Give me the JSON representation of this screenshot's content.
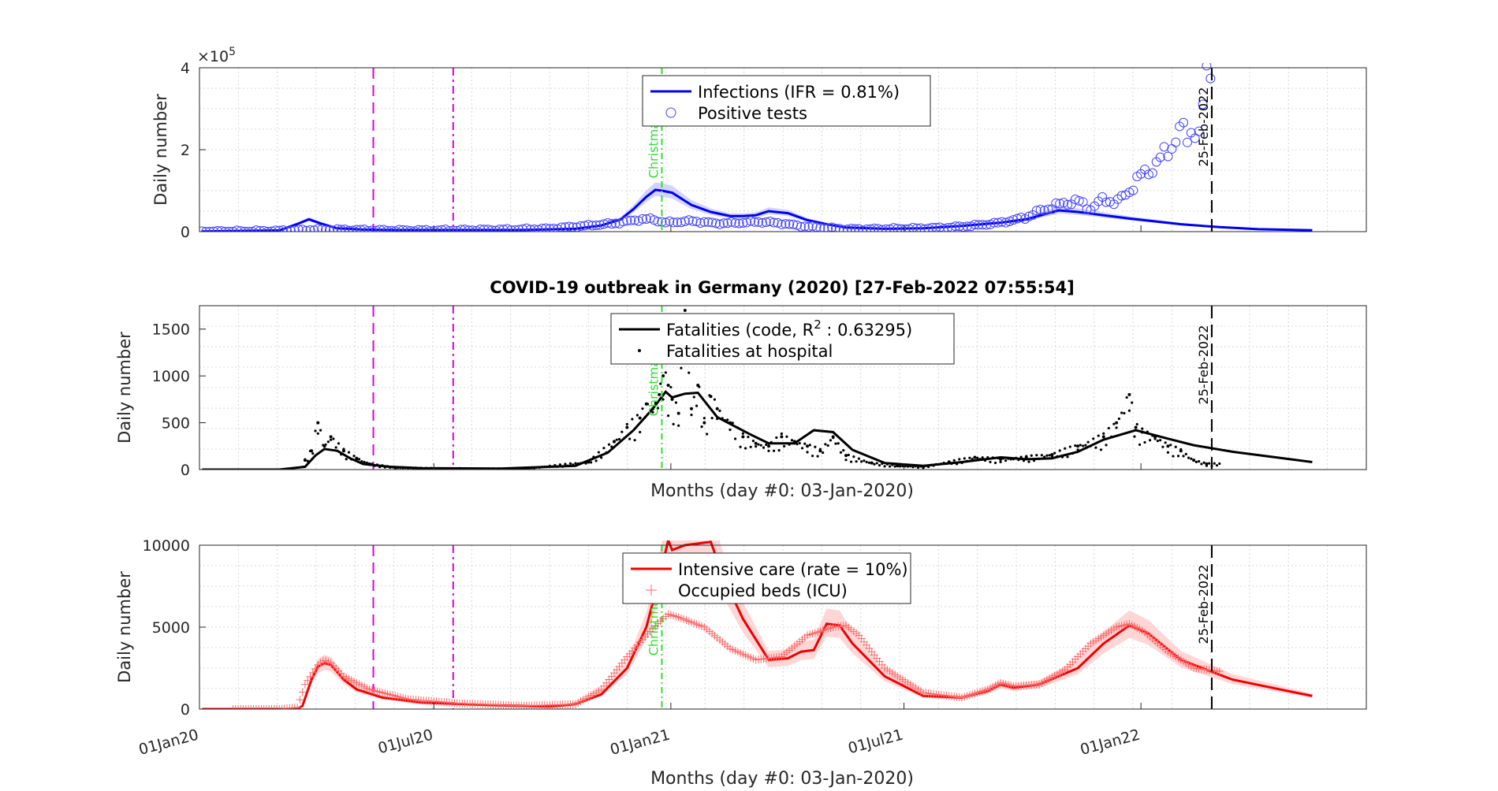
{
  "figure_title": "COVID-19 outbreak in Germany (2020) [27-Feb-2022 07:55:54]",
  "chart_data": [
    {
      "type": "line",
      "ylabel": "Daily number",
      "xlabel": "",
      "y_exponent_label": "×10",
      "y_exponent_power": "5",
      "ylim": [
        0,
        4
      ],
      "yticks": [
        "0",
        "2",
        "4"
      ],
      "xlim_days": [
        -2,
        904
      ],
      "grid": true,
      "legend_position": "top-center",
      "legend": [
        "Infections (IFR = 0.81%)",
        "Positive tests"
      ],
      "colors": {
        "line": "#0000ee",
        "band": "#c8c8ff",
        "markers": "#4444ff",
        "event": "#dd00dd",
        "christmas": "#33dd33"
      },
      "events": [
        {
          "label": "Christmas",
          "day": 357
        },
        {
          "label": "25-Feb-2022",
          "day": 784
        }
      ],
      "series": [
        {
          "name": "Infections (IFR = 0.81%)",
          "style": "line",
          "x": [
            0,
            60,
            75,
            83,
            92,
            105,
            125,
            150,
            200,
            250,
            290,
            310,
            325,
            335,
            345,
            352,
            357,
            365,
            380,
            395,
            410,
            420,
            430,
            440,
            455,
            470,
            485,
            500,
            530,
            560,
            590,
            620,
            640,
            665,
            680,
            695,
            705,
            720,
            740,
            760,
            790,
            820,
            862
          ],
          "y": [
            0.005,
            0.03,
            0.2,
            0.3,
            0.2,
            0.08,
            0.05,
            0.04,
            0.04,
            0.04,
            0.07,
            0.15,
            0.3,
            0.55,
            0.85,
            1.02,
            1.0,
            0.95,
            0.65,
            0.48,
            0.38,
            0.38,
            0.4,
            0.5,
            0.45,
            0.28,
            0.18,
            0.1,
            0.07,
            0.08,
            0.14,
            0.22,
            0.3,
            0.52,
            0.48,
            0.42,
            0.38,
            0.32,
            0.25,
            0.18,
            0.11,
            0.06,
            0.035
          ]
        },
        {
          "name": "Positive tests",
          "style": "markers",
          "x": [
            0,
            30,
            60,
            90,
            120,
            150,
            180,
            210,
            240,
            270,
            300,
            320,
            330,
            340,
            350,
            355,
            360,
            370,
            380,
            390,
            400,
            410,
            420,
            430,
            440,
            450,
            460,
            470,
            480,
            490,
            500,
            520,
            540,
            560,
            580,
            600,
            610,
            620,
            630,
            640,
            650,
            660,
            670,
            680,
            690,
            700,
            710,
            720,
            730,
            740,
            750,
            755,
            760,
            765,
            770,
            775,
            780,
            785
          ],
          "y": [
            0.0,
            0.01,
            0.02,
            0.05,
            0.04,
            0.03,
            0.03,
            0.04,
            0.05,
            0.07,
            0.15,
            0.2,
            0.25,
            0.3,
            0.3,
            0.26,
            0.22,
            0.24,
            0.26,
            0.23,
            0.2,
            0.21,
            0.22,
            0.24,
            0.23,
            0.2,
            0.16,
            0.12,
            0.1,
            0.08,
            0.06,
            0.06,
            0.07,
            0.08,
            0.1,
            0.15,
            0.18,
            0.22,
            0.28,
            0.35,
            0.5,
            0.6,
            0.7,
            0.75,
            0.55,
            0.8,
            0.7,
            1.0,
            1.4,
            1.6,
            2.0,
            2.2,
            2.5,
            2.3,
            2.6,
            2.2,
            4.0,
            3.8
          ]
        }
      ]
    },
    {
      "type": "line",
      "ylabel": "Daily number",
      "xlabel": "Months (day #0: 03-Jan-2020)",
      "ylim": [
        0,
        1750
      ],
      "yticks": [
        "0",
        "500",
        "1000",
        "1500"
      ],
      "xlim_days": [
        -2,
        904
      ],
      "grid": true,
      "legend_position": "top-center",
      "legend": [
        "Fatalities (code, R",
        "2",
        " : 0.63295)",
        "Fatalities at hospital"
      ],
      "colors": {
        "line": "#000000",
        "dots": "#000000",
        "event": "#dd00dd",
        "christmas": "#33dd33"
      },
      "events": [
        {
          "label": "Christmas",
          "day": 357
        },
        {
          "label": "25-Feb-2022",
          "day": 784
        }
      ],
      "series": [
        {
          "name": "Fatalities (code, R^2 : 0.63295)",
          "style": "line",
          "x": [
            0,
            60,
            80,
            88,
            95,
            105,
            115,
            125,
            145,
            170,
            230,
            290,
            315,
            335,
            350,
            360,
            365,
            375,
            385,
            400,
            425,
            440,
            460,
            475,
            490,
            505,
            530,
            560,
            590,
            620,
            640,
            660,
            680,
            700,
            725,
            750,
            770,
            800,
            862
          ],
          "y": [
            0,
            0,
            30,
            150,
            220,
            200,
            120,
            60,
            30,
            15,
            10,
            40,
            180,
            420,
            650,
            830,
            770,
            810,
            820,
            560,
            380,
            280,
            280,
            420,
            400,
            210,
            70,
            40,
            80,
            130,
            110,
            120,
            190,
            320,
            420,
            330,
            260,
            190,
            80
          ]
        },
        {
          "name": "Fatalities at hospital",
          "style": "dots",
          "x": [
            80,
            85,
            90,
            95,
            100,
            110,
            120,
            130,
            150,
            200,
            250,
            300,
            320,
            330,
            340,
            345,
            350,
            355,
            358,
            362,
            365,
            370,
            375,
            380,
            385,
            390,
            395,
            400,
            410,
            420,
            430,
            440,
            450,
            460,
            470,
            480,
            490,
            500,
            520,
            540,
            560,
            580,
            600,
            620,
            640,
            660,
            680,
            700,
            710,
            720,
            725,
            730,
            740,
            750,
            760,
            770,
            780
          ],
          "y": [
            100,
            200,
            500,
            250,
            350,
            200,
            120,
            60,
            20,
            10,
            8,
            80,
            300,
            450,
            550,
            700,
            650,
            800,
            1000,
            900,
            750,
            600,
            1700,
            650,
            900,
            500,
            780,
            650,
            500,
            350,
            280,
            250,
            350,
            300,
            250,
            200,
            350,
            150,
            70,
            40,
            30,
            80,
            130,
            110,
            130,
            160,
            250,
            350,
            500,
            800,
            450,
            400,
            350,
            250,
            200,
            100,
            60
          ]
        }
      ]
    },
    {
      "type": "line",
      "ylabel": "Daily number",
      "xlabel": "Months (day #0: 03-Jan-2020)",
      "ylim": [
        0,
        10000
      ],
      "yticks": [
        "0",
        "5000",
        "10000"
      ],
      "xlim_days": [
        -2,
        904
      ],
      "xticks": [
        {
          "label": "01Jan20",
          "day": -2
        },
        {
          "label": "01Jul20",
          "day": 180
        },
        {
          "label": "01Jan21",
          "day": 364
        },
        {
          "label": "01Jul21",
          "day": 545
        },
        {
          "label": "01Jan22",
          "day": 729
        }
      ],
      "grid": true,
      "legend_position": "top-center",
      "legend": [
        "Intensive care (rate = 10%)",
        "Occupied beds (ICU)"
      ],
      "colors": {
        "line": "#ee0000",
        "band": "#ffcccc",
        "markers": "#ff6666",
        "event": "#dd00dd",
        "christmas": "#33dd33"
      },
      "events": [
        {
          "label": "Christmas",
          "day": 357
        },
        {
          "label": "25-Feb-2022",
          "day": 784
        }
      ],
      "series": [
        {
          "name": "Intensive care (rate = 10%)",
          "style": "line",
          "x": [
            0,
            74,
            78,
            85,
            90,
            95,
            100,
            110,
            120,
            140,
            170,
            220,
            270,
            290,
            310,
            330,
            345,
            355,
            362,
            365,
            375,
            395,
            405,
            420,
            440,
            455,
            465,
            475,
            485,
            495,
            505,
            530,
            560,
            590,
            610,
            620,
            630,
            650,
            680,
            700,
            720,
            735,
            760,
            800,
            862
          ],
          "y": [
            0,
            0,
            200,
            1800,
            2600,
            2800,
            2700,
            1800,
            1200,
            700,
            400,
            250,
            150,
            300,
            900,
            2500,
            5000,
            8000,
            10300,
            9700,
            10000,
            10200,
            8000,
            5500,
            3000,
            3100,
            3500,
            3600,
            5200,
            5100,
            4000,
            2000,
            800,
            700,
            1100,
            1500,
            1300,
            1500,
            2500,
            4000,
            5100,
            4600,
            3000,
            1800,
            800
          ]
        },
        {
          "name": "Occupied beds (ICU)",
          "style": "markers",
          "x": [
            24,
            60,
            74,
            80,
            90,
            95,
            100,
            110,
            130,
            160,
            200,
            250,
            290,
            310,
            330,
            345,
            355,
            362,
            370,
            390,
            410,
            430,
            450,
            470,
            490,
            500,
            510,
            530,
            560,
            590,
            610,
            620,
            630,
            650,
            670,
            690,
            710,
            720,
            730,
            750,
            770,
            790
          ],
          "y": [
            0,
            0,
            100,
            1500,
            2700,
            3000,
            2800,
            2000,
            1200,
            600,
            350,
            200,
            300,
            1200,
            3200,
            4500,
            5300,
            5800,
            5600,
            5000,
            3700,
            3000,
            3200,
            4500,
            5000,
            5100,
            4500,
            2500,
            1000,
            700,
            1200,
            1600,
            1400,
            1500,
            2400,
            4000,
            5000,
            5200,
            4800,
            3500,
            2500,
            2300
          ]
        }
      ]
    }
  ]
}
